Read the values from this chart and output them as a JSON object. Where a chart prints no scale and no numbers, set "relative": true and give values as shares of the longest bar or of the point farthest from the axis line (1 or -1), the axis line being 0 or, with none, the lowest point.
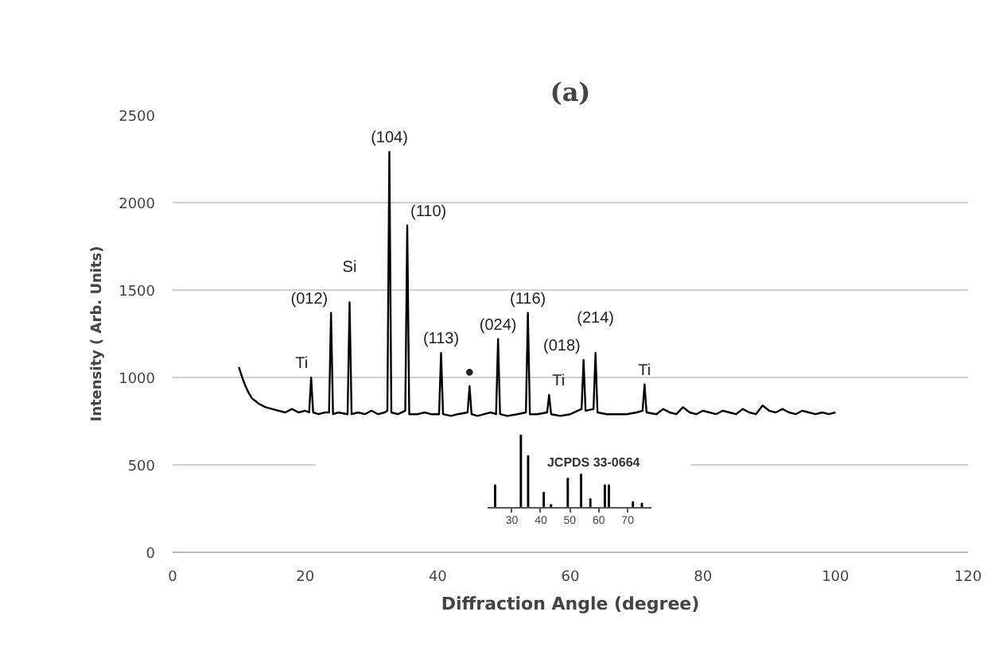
{
  "chart_data": [
    {
      "type": "line",
      "title": "(a)",
      "xlabel": "Diffraction Angle (degree)",
      "ylabel": "Intensity ( Arb. Units)",
      "xlim": [
        0,
        120
      ],
      "xticks": [
        0,
        20,
        40,
        60,
        80,
        100,
        120
      ],
      "ylim": [
        0,
        2500
      ],
      "yticks": [
        0,
        500,
        1000,
        1500,
        2000,
        2500
      ],
      "grid": "y",
      "series": [
        {
          "color": "#000000",
          "x": [
            10,
            10.5,
            11,
            11.5,
            12,
            13,
            14,
            15,
            16,
            17,
            18,
            19,
            20,
            20.6,
            20.9,
            21.2,
            22,
            23,
            23.6,
            23.9,
            24.2,
            25,
            26.4,
            26.7,
            27,
            28,
            29,
            30,
            31,
            32,
            32.4,
            32.7,
            33,
            34,
            35.1,
            35.4,
            35.7,
            37,
            38,
            39,
            40.2,
            40.5,
            40.8,
            42,
            43,
            44.5,
            44.8,
            45.1,
            46,
            47,
            48,
            48.8,
            49.1,
            49.4,
            50.5,
            52,
            53.3,
            53.6,
            53.9,
            55,
            56.5,
            56.8,
            57.1,
            58.5,
            60,
            61.7,
            62.0,
            62.3,
            63.5,
            63.8,
            64.1,
            65.5,
            67,
            68.5,
            70,
            70.9,
            71.2,
            71.5,
            73,
            74,
            75,
            76,
            77,
            78,
            79,
            80,
            81,
            82,
            83,
            84,
            85,
            86,
            87,
            88,
            89,
            90,
            91,
            92,
            93,
            94,
            95,
            96,
            97,
            98,
            99,
            100
          ],
          "values": [
            1060,
            1000,
            950,
            910,
            880,
            850,
            830,
            820,
            810,
            800,
            820,
            800,
            810,
            800,
            1000,
            800,
            790,
            800,
            800,
            1370,
            790,
            800,
            790,
            1430,
            790,
            800,
            790,
            810,
            790,
            800,
            810,
            2290,
            800,
            790,
            810,
            1870,
            790,
            790,
            800,
            790,
            790,
            1140,
            790,
            780,
            790,
            800,
            950,
            790,
            780,
            790,
            800,
            790,
            1220,
            790,
            780,
            790,
            800,
            1370,
            790,
            790,
            800,
            900,
            790,
            780,
            790,
            820,
            1100,
            810,
            820,
            1140,
            800,
            790,
            790,
            790,
            800,
            810,
            960,
            800,
            790,
            820,
            800,
            790,
            830,
            800,
            790,
            810,
            800,
            790,
            810,
            800,
            790,
            820,
            800,
            790,
            840,
            810,
            800,
            820,
            800,
            790,
            810,
            800,
            790,
            800,
            790,
            800
          ]
        }
      ],
      "annotations": [
        {
          "text": "Ti",
          "x": 20.9,
          "y": 1000
        },
        {
          "text": "(012)",
          "x": 23.9,
          "y": 1370
        },
        {
          "text": "Si",
          "x": 26.7,
          "y": 1430
        },
        {
          "text": "(104)",
          "x": 32.7,
          "y": 2290
        },
        {
          "text": "(110)",
          "x": 35.4,
          "y": 1870
        },
        {
          "text": "(113)",
          "x": 40.5,
          "y": 1140
        },
        {
          "text": "●",
          "x": 44.8,
          "y": 950
        },
        {
          "text": "(024)",
          "x": 49.1,
          "y": 1220
        },
        {
          "text": "(116)",
          "x": 53.6,
          "y": 1370
        },
        {
          "text": "Ti",
          "x": 56.8,
          "y": 900
        },
        {
          "text": "(018)",
          "x": 62.0,
          "y": 1100
        },
        {
          "text": "(214)",
          "x": 63.8,
          "y": 1140
        },
        {
          "text": "Ti",
          "x": 71.2,
          "y": 960
        }
      ]
    },
    {
      "type": "bar",
      "relative": true,
      "xlim": [
        21.6,
        78.2
      ],
      "xticks": [
        30,
        40,
        50,
        60,
        70
      ],
      "color": "#000000",
      "x": [
        24.2,
        33.1,
        35.6,
        41.0,
        43.5,
        49.3,
        53.9,
        57.1,
        62.1,
        63.5,
        71.8,
        74.9
      ],
      "values": [
        0.31,
        1,
        0.71,
        0.21,
        0.04,
        0.4,
        0.46,
        0.12,
        0.31,
        0.31,
        0.08,
        0.06
      ],
      "annotations": [
        "JCPDS 33-0664"
      ]
    }
  ]
}
